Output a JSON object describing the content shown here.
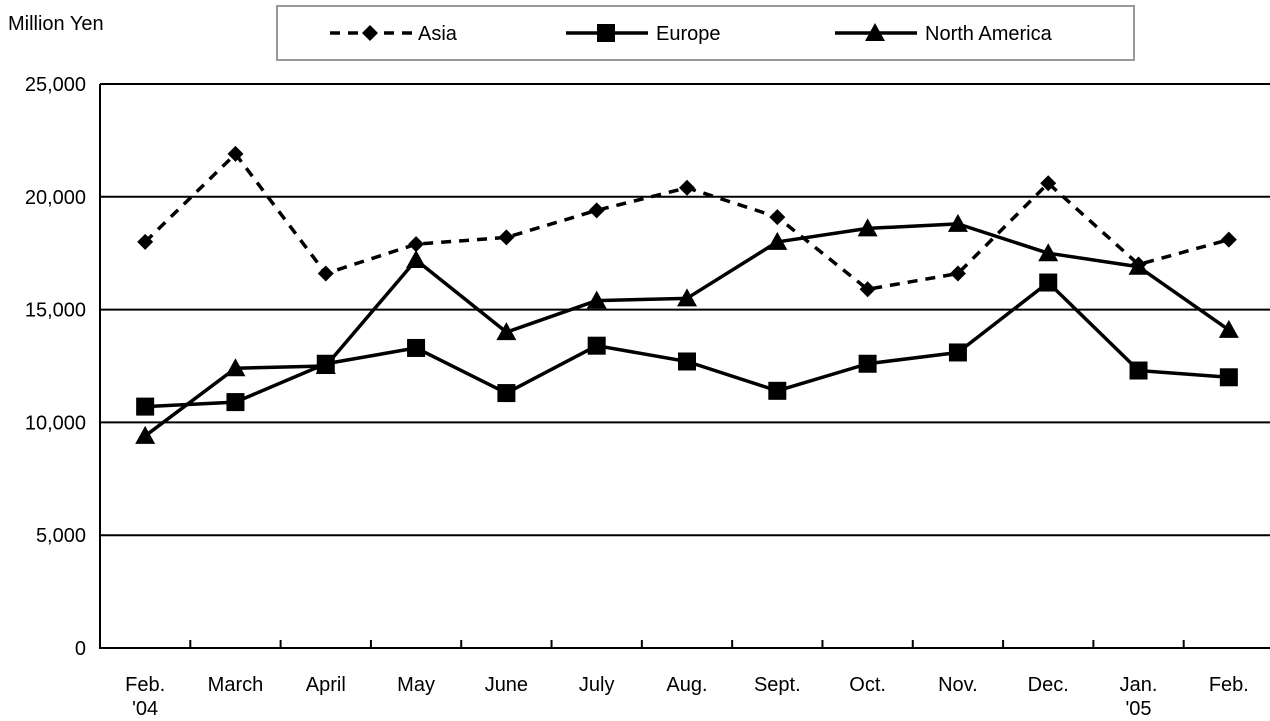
{
  "chart_data": {
    "type": "line",
    "ylabel": "Million Yen",
    "ylim": [
      0,
      25000
    ],
    "yticks": [
      "25,000",
      "20,000",
      "15,000",
      "10,000",
      "5,000",
      "0"
    ],
    "ytick_values": [
      25000,
      20000,
      15000,
      10000,
      5000,
      0
    ],
    "categories": [
      [
        "Feb.",
        "'04"
      ],
      [
        "March"
      ],
      [
        "April"
      ],
      [
        "May"
      ],
      [
        "June"
      ],
      [
        "July"
      ],
      [
        "Aug."
      ],
      [
        "Sept."
      ],
      [
        "Oct."
      ],
      [
        "Nov."
      ],
      [
        "Dec."
      ],
      [
        "Jan.",
        "'05"
      ],
      [
        "Feb."
      ]
    ],
    "grid": true,
    "legend_position": "top",
    "series": [
      {
        "name": "Asia",
        "line_style": "dashed",
        "marker": "diamond",
        "color": "#000000",
        "values": [
          18000,
          21900,
          16600,
          17900,
          18200,
          19400,
          20400,
          19100,
          15900,
          16600,
          20600,
          17000,
          18100
        ]
      },
      {
        "name": "Europe",
        "line_style": "solid",
        "marker": "square",
        "color": "#000000",
        "values": [
          10700,
          10900,
          12600,
          13300,
          11300,
          13400,
          12700,
          11400,
          12600,
          13100,
          16200,
          12300,
          12000
        ]
      },
      {
        "name": "North America",
        "line_style": "solid",
        "marker": "triangle",
        "color": "#000000",
        "values": [
          9400,
          12400,
          12500,
          17200,
          14000,
          15400,
          15500,
          18000,
          18600,
          18800,
          17500,
          16900,
          14100
        ]
      }
    ]
  }
}
